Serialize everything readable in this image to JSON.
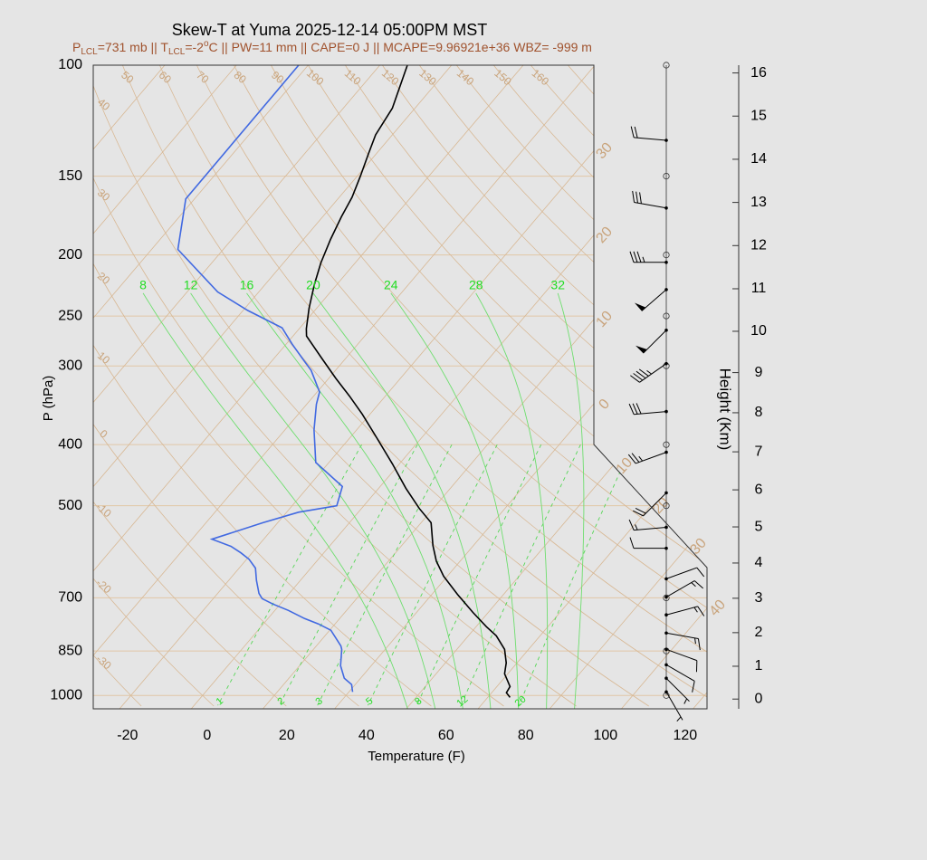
{
  "chart_data": {
    "type": "skewt",
    "title": "Skew-T at Yuma 2025-12-14 05:00PM MST",
    "subtitle": [
      "P",
      "LCL",
      "=731 mb || T",
      "LCL",
      "=-2",
      "o",
      "C || PW=11 mm || CAPE=0 J || MCAPE=9.96921e+36 WBZ= -999 m"
    ],
    "x_label": "Temperature (F)",
    "y_label": "P (hPa)",
    "y2_label": "Height (Km)",
    "xlim": [
      -28.6,
      125.5
    ],
    "xticks": [
      -20,
      0,
      20,
      40,
      60,
      80,
      100,
      120
    ],
    "ylim": [
      1050,
      100
    ],
    "yticks": [
      100,
      150,
      200,
      250,
      300,
      400,
      500,
      700,
      850,
      1000
    ],
    "log_y": true,
    "height_ticks": [
      0,
      1,
      2,
      3,
      4,
      5,
      6,
      7,
      8,
      9,
      10,
      11,
      12,
      13,
      14,
      15,
      16
    ],
    "series": [
      {
        "color": "#000000",
        "pressure": [
          1007,
          990,
          968,
          924,
          888,
          845,
          804,
          778,
          738,
          691,
          647,
          612,
          578,
          532,
          505,
          469,
          429,
          390,
          358,
          335,
          314,
          291,
          269,
          262,
          243,
          223,
          206,
          189,
          174,
          162,
          150,
          138,
          129,
          117,
          100
        ],
        "values": [
          73.6,
          71.7,
          71.3,
          67.2,
          65.3,
          62.0,
          57.0,
          52.6,
          46.1,
          38.4,
          31.1,
          26.0,
          21.8,
          16.5,
          10.5,
          2.8,
          -5.8,
          -15.3,
          -23.9,
          -31.0,
          -38.2,
          -46.3,
          -54.6,
          -56.2,
          -59.9,
          -63.6,
          -66.6,
          -69.2,
          -71.3,
          -72.8,
          -75.2,
          -78.0,
          -80.2,
          -81.7,
          -87.1
        ]
      },
      {
        "color": "#4169e1",
        "pressure": [
          987,
          961,
          939,
          897,
          845,
          834,
          788,
          770,
          755,
          733,
          716,
          702,
          689,
          657,
          628,
          608,
          594,
          580,
          565,
          532,
          512,
          500,
          466,
          427,
          379,
          345,
          330,
          305,
          294,
          277,
          261,
          245,
          229,
          196,
          163,
          100
        ],
        "values": [
          32.9,
          31.1,
          27.9,
          24.3,
          21.1,
          20.1,
          14.3,
          9.8,
          5.2,
          -0.6,
          -5.9,
          -9.7,
          -11.6,
          -15.0,
          -17.9,
          -21.4,
          -24.8,
          -28.7,
          -35.0,
          -25.7,
          -19.0,
          -10.8,
          -13.5,
          -25.3,
          -32.7,
          -37.6,
          -39.4,
          -46.1,
          -50.1,
          -56.5,
          -62.5,
          -74.8,
          -86.3,
          -105.4,
          -114.2,
          -114.4
        ]
      }
    ],
    "isotherm_labels": [
      {
        "value": -30,
        "label": "30"
      },
      {
        "value": -20,
        "label": "20"
      },
      {
        "value": -10,
        "label": "10"
      },
      0,
      10,
      20,
      30,
      40
    ],
    "adiabat_labels": [
      -30,
      -20,
      -10,
      0,
      10,
      20,
      30,
      40,
      50,
      60,
      70,
      80,
      90,
      100,
      110,
      120,
      130,
      140,
      150,
      160
    ],
    "mixing_ratio_labels": [
      1,
      2,
      3,
      5,
      8,
      12,
      20
    ],
    "moist_adiabat_labels": [
      8,
      12,
      16,
      20,
      24,
      28,
      32
    ],
    "winds": {
      "pressure": [
        131.6,
        168.5,
        205.5,
        227,
        263.3,
        297.5,
        354.4,
        411.3,
        477,
        541,
        584,
        653,
        698,
        745,
        796,
        845,
        894,
        939,
        986.9
      ],
      "direction": [
        275,
        280,
        270,
        229,
        225,
        235,
        265,
        250,
        225,
        265,
        270,
        70,
        60,
        75,
        100,
        110,
        120,
        135,
        150
      ],
      "speed": [
        20,
        30,
        35,
        50,
        50,
        45,
        30,
        25,
        20,
        15,
        10,
        10,
        15,
        15,
        15,
        10,
        10,
        5,
        5
      ]
    }
  }
}
